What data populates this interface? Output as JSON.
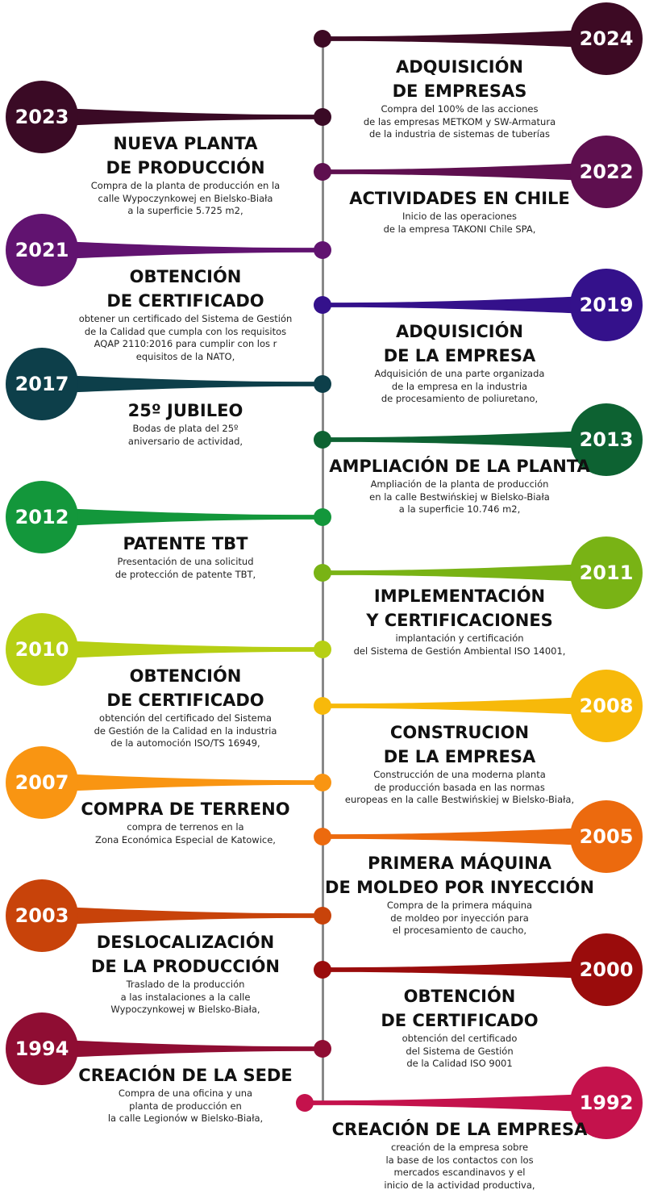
{
  "events": [
    {
      "year": "2024",
      "color": "#3d0a24",
      "title": "ADQUISICIÓN\nDE EMPRESAS",
      "desc": "Compra del 100% de las acciones\nde las empresas METKOM y SW-Armatura\nde la industria de sistemas de tuberías"
    },
    {
      "year": "2023",
      "color": "#3a0a25",
      "title": "NUEVA PLANTA\nDE PRODUCCIÓN",
      "desc": "Compra de la planta de producción en la\ncalle Wypoczynkowej en Bielsko-Biała\na la superficie 5.725 m2,"
    },
    {
      "year": "2022",
      "color": "#5e0f4f",
      "title": "ACTIVIDADES EN CHILE",
      "desc": "Inicio de las operaciones\nde la empresa TAKONI Chile SPA,"
    },
    {
      "year": "2021",
      "color": "#611370",
      "title": "OBTENCIÓN\nDE CERTIFICADO",
      "desc": "obtener un certificado del Sistema de Gestión\nde la Calidad que cumpla con los requisitos\nAQAP 2110:2016 para cumplir con los r\nequisitos de la NATO,"
    },
    {
      "year": "2019",
      "color": "#34118b",
      "title": "ADQUISICIÓN\nDE LA EMPRESA",
      "desc": "Adquisición de una parte organizada\nde la empresa en la industria\nde procesamiento de poliuretano,"
    },
    {
      "year": "2017",
      "color": "#0d3f4a",
      "title": "25º JUBILEO",
      "desc": "Bodas de plata del 25º\naniversario de actividad,"
    },
    {
      "year": "2013",
      "color": "#0d6232",
      "title": "AMPLIACIÓN DE LA PLANTA",
      "desc": "Ampliación de la planta de producción\nen la calle Bestwińskiej w Bielsko-Biała\na la superficie 10.746 m2,"
    },
    {
      "year": "2012",
      "color": "#13973b",
      "title": "PATENTE TBT",
      "desc": "Presentación de una solicitud\nde protección de patente TBT,"
    },
    {
      "year": "2011",
      "color": "#79b315",
      "title": "IMPLEMENTACIÓN\nY CERTIFICACIONES",
      "desc": "implantación y certificación\ndel Sistema de Gestión Ambiental ISO 14001,"
    },
    {
      "year": "2010",
      "color": "#b6cf14",
      "title": "OBTENCIÓN\nDE CERTIFICADO",
      "desc": "obtención del certificado del Sistema\nde Gestión de la Calidad en la industria\nde la automoción ISO/TS 16949,"
    },
    {
      "year": "2008",
      "color": "#f7b90a",
      "title": "CONSTRUCION\nDE LA EMPRESA",
      "desc": "Construcción de una moderna planta\nde producción basada en las normas\neuropeas en la calle Bestwińskiej w Bielsko-Biała,"
    },
    {
      "year": "2007",
      "color": "#f99512",
      "title": "COMPRA DE TERRENO",
      "desc": "compra de terrenos en la\nZona Económica Especial de Katowice,"
    },
    {
      "year": "2005",
      "color": "#ec6a0e",
      "title": "PRIMERA MÁQUINA\nDE MOLDEO POR INYECCIÓN",
      "desc": "Compra de la primera máquina\nde moldeo por inyección para\nel procesamiento de caucho,"
    },
    {
      "year": "2003",
      "color": "#c8430a",
      "title": "DESLOCALIZACIÓN\nDE LA PRODUCCIÓN",
      "desc": "Traslado de la producción\na las instalaciones a la calle\nWypoczynkowej w Bielsko-Biała,"
    },
    {
      "year": "2000",
      "color": "#9a0c0c",
      "title": "OBTENCIÓN\nDE CERTIFICADO",
      "desc": "obtención del certificado\ndel Sistema de Gestión\nde la Calidad ISO 9001"
    },
    {
      "year": "1994",
      "color": "#8f0d33",
      "title": "CREACIÓN DE LA SEDE",
      "desc": "Compra de una oficina y una\nplanta de producción en\nla calle Legionów w Bielsko-Biała,"
    },
    {
      "year": "1992",
      "color": "#c4124c",
      "title": "CREACIÓN DE LA EMPRESA",
      "desc": "creación de la empresa sobre\nla base de los contactos con los\nmercados escandinavos y el\ninicio de la actividad productiva,"
    }
  ]
}
